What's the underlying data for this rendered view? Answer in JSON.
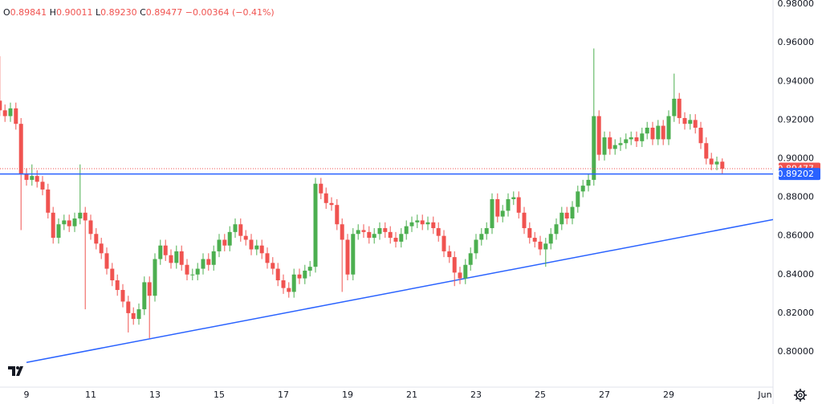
{
  "chart_data": {
    "type": "candlestick",
    "header": {
      "items": [
        {
          "key": "O",
          "value": "0.89841"
        },
        {
          "key": "H",
          "value": "0.90011"
        },
        {
          "key": "L",
          "value": "0.89230"
        },
        {
          "key": "C",
          "value": "0.89477"
        }
      ],
      "change": "−0.00364 (−0.41%)"
    },
    "up_color": "#4caf50",
    "down_color": "#f05350",
    "x": [
      8.17,
      8.33,
      8.5,
      8.67,
      8.83,
      9,
      9.17,
      9.33,
      9.5,
      9.67,
      9.83,
      10,
      10.17,
      10.33,
      10.5,
      10.67,
      10.83,
      11,
      11.17,
      11.33,
      11.5,
      11.67,
      11.83,
      12,
      12.17,
      12.33,
      12.5,
      12.67,
      12.83,
      13,
      13.17,
      13.33,
      13.5,
      13.67,
      13.83,
      14,
      14.17,
      14.33,
      14.5,
      14.67,
      14.83,
      15,
      15.17,
      15.33,
      15.5,
      15.67,
      15.83,
      16,
      16.17,
      16.33,
      16.5,
      16.67,
      16.83,
      17,
      17.17,
      17.33,
      17.5,
      17.67,
      17.83,
      18,
      18.17,
      18.33,
      18.5,
      18.67,
      18.83,
      19,
      19.17,
      19.33,
      19.5,
      19.67,
      19.83,
      20,
      20.17,
      20.33,
      20.5,
      20.67,
      20.83,
      21,
      21.17,
      21.33,
      21.5,
      21.67,
      21.83,
      22,
      22.17,
      22.33,
      22.5,
      22.67,
      22.83,
      23,
      23.17,
      23.33,
      23.5,
      23.67,
      23.83,
      24,
      24.17,
      24.33,
      24.5,
      24.67,
      24.83,
      25,
      25.17,
      25.33,
      25.5,
      25.67,
      25.83,
      26,
      26.17,
      26.33,
      26.5,
      26.67,
      26.83,
      27,
      27.17,
      27.33,
      27.5,
      27.67,
      27.83,
      28,
      28.17,
      28.33,
      28.5,
      28.67,
      28.83,
      29,
      29.17,
      29.33,
      29.5,
      29.67,
      29.83,
      30,
      30.17,
      30.33,
      30.5,
      30.67
    ],
    "open": [
      0.93,
      0.925,
      0.922,
      0.926,
      0.918,
      0.892,
      0.889,
      0.891,
      0.888,
      0.884,
      0.872,
      0.859,
      0.866,
      0.868,
      0.865,
      0.869,
      0.872,
      0.868,
      0.861,
      0.856,
      0.851,
      0.843,
      0.837,
      0.832,
      0.826,
      0.82,
      0.817,
      0.822,
      0.836,
      0.829,
      0.848,
      0.855,
      0.85,
      0.846,
      0.852,
      0.845,
      0.84,
      0.84,
      0.843,
      0.848,
      0.845,
      0.852,
      0.858,
      0.855,
      0.862,
      0.866,
      0.86,
      0.858,
      0.853,
      0.855,
      0.851,
      0.846,
      0.843,
      0.837,
      0.833,
      0.831,
      0.84,
      0.838,
      0.842,
      0.844,
      0.887,
      0.882,
      0.877,
      0.876,
      0.866,
      0.858,
      0.84,
      0.861,
      0.863,
      0.862,
      0.859,
      0.861,
      0.864,
      0.862,
      0.859,
      0.857,
      0.861,
      0.865,
      0.867,
      0.868,
      0.866,
      0.867,
      0.864,
      0.86,
      0.852,
      0.849,
      0.841,
      0.838,
      0.845,
      0.851,
      0.858,
      0.861,
      0.864,
      0.879,
      0.87,
      0.873,
      0.879,
      0.88,
      0.872,
      0.864,
      0.859,
      0.857,
      0.853,
      0.856,
      0.861,
      0.866,
      0.872,
      0.869,
      0.875,
      0.883,
      0.886,
      0.889,
      0.922,
      0.902,
      0.911,
      0.905,
      0.907,
      0.908,
      0.91,
      0.911,
      0.909,
      0.913,
      0.916,
      0.91,
      0.917,
      0.91,
      0.922,
      0.931,
      0.921,
      0.918,
      0.92,
      0.916,
      0.908,
      0.9,
      0.897,
      0.89841
    ],
    "high": [
      0.953,
      0.928,
      0.929,
      0.929,
      0.921,
      0.895,
      0.897,
      0.894,
      0.891,
      0.887,
      0.875,
      0.869,
      0.871,
      0.871,
      0.872,
      0.897,
      0.875,
      0.871,
      0.864,
      0.859,
      0.854,
      0.846,
      0.84,
      0.835,
      0.829,
      0.823,
      0.825,
      0.839,
      0.839,
      0.851,
      0.858,
      0.858,
      0.853,
      0.855,
      0.855,
      0.848,
      0.843,
      0.846,
      0.851,
      0.851,
      0.855,
      0.861,
      0.861,
      0.865,
      0.869,
      0.869,
      0.863,
      0.861,
      0.858,
      0.858,
      0.854,
      0.849,
      0.846,
      0.84,
      0.836,
      0.843,
      0.843,
      0.845,
      0.847,
      0.89,
      0.89,
      0.885,
      0.88,
      0.879,
      0.869,
      0.861,
      0.864,
      0.866,
      0.866,
      0.865,
      0.864,
      0.867,
      0.867,
      0.865,
      0.862,
      0.864,
      0.868,
      0.87,
      0.871,
      0.871,
      0.87,
      0.87,
      0.867,
      0.863,
      0.855,
      0.852,
      0.844,
      0.848,
      0.854,
      0.861,
      0.864,
      0.867,
      0.882,
      0.882,
      0.876,
      0.882,
      0.883,
      0.883,
      0.875,
      0.867,
      0.862,
      0.86,
      0.859,
      0.864,
      0.869,
      0.875,
      0.875,
      0.878,
      0.886,
      0.889,
      0.892,
      0.957,
      0.925,
      0.914,
      0.914,
      0.91,
      0.911,
      0.913,
      0.914,
      0.914,
      0.916,
      0.919,
      0.919,
      0.92,
      0.92,
      0.925,
      0.944,
      0.934,
      0.924,
      0.923,
      0.923,
      0.919,
      0.911,
      0.903,
      0.901,
      0.90011
    ],
    "low": [
      0.922,
      0.919,
      0.919,
      0.915,
      0.863,
      0.886,
      0.886,
      0.885,
      0.881,
      0.869,
      0.856,
      0.856,
      0.863,
      0.862,
      0.862,
      0.866,
      0.822,
      0.858,
      0.853,
      0.848,
      0.84,
      0.834,
      0.829,
      0.823,
      0.81,
      0.814,
      0.814,
      0.819,
      0.807,
      0.826,
      0.845,
      0.847,
      0.843,
      0.843,
      0.842,
      0.837,
      0.837,
      0.837,
      0.84,
      0.842,
      0.842,
      0.849,
      0.852,
      0.852,
      0.859,
      0.857,
      0.855,
      0.85,
      0.85,
      0.848,
      0.843,
      0.84,
      0.834,
      0.83,
      0.828,
      0.828,
      0.835,
      0.835,
      0.839,
      0.841,
      0.879,
      0.874,
      0.873,
      0.863,
      0.831,
      0.837,
      0.837,
      0.858,
      0.859,
      0.856,
      0.856,
      0.858,
      0.859,
      0.856,
      0.854,
      0.854,
      0.858,
      0.862,
      0.864,
      0.863,
      0.863,
      0.861,
      0.857,
      0.849,
      0.846,
      0.834,
      0.835,
      0.835,
      0.842,
      0.848,
      0.855,
      0.858,
      0.861,
      0.867,
      0.867,
      0.87,
      0.876,
      0.869,
      0.861,
      0.856,
      0.854,
      0.85,
      0.844,
      0.853,
      0.858,
      0.863,
      0.866,
      0.866,
      0.872,
      0.88,
      0.883,
      0.886,
      0.899,
      0.899,
      0.902,
      0.902,
      0.904,
      0.905,
      0.907,
      0.906,
      0.906,
      0.91,
      0.907,
      0.907,
      0.907,
      0.907,
      0.919,
      0.918,
      0.915,
      0.915,
      0.913,
      0.905,
      0.897,
      0.894,
      0.894,
      0.8923
    ],
    "close": [
      0.925,
      0.922,
      0.926,
      0.918,
      0.892,
      0.889,
      0.891,
      0.888,
      0.884,
      0.872,
      0.859,
      0.866,
      0.868,
      0.865,
      0.869,
      0.872,
      0.868,
      0.861,
      0.856,
      0.851,
      0.843,
      0.837,
      0.832,
      0.826,
      0.82,
      0.817,
      0.822,
      0.836,
      0.829,
      0.848,
      0.855,
      0.85,
      0.846,
      0.852,
      0.845,
      0.84,
      0.84,
      0.843,
      0.848,
      0.845,
      0.852,
      0.858,
      0.855,
      0.862,
      0.866,
      0.86,
      0.858,
      0.853,
      0.855,
      0.851,
      0.846,
      0.843,
      0.837,
      0.833,
      0.831,
      0.84,
      0.838,
      0.842,
      0.844,
      0.887,
      0.882,
      0.877,
      0.876,
      0.866,
      0.858,
      0.84,
      0.861,
      0.863,
      0.862,
      0.859,
      0.861,
      0.864,
      0.862,
      0.859,
      0.857,
      0.861,
      0.865,
      0.867,
      0.868,
      0.866,
      0.867,
      0.864,
      0.86,
      0.852,
      0.849,
      0.841,
      0.838,
      0.845,
      0.851,
      0.858,
      0.861,
      0.864,
      0.879,
      0.87,
      0.873,
      0.879,
      0.88,
      0.872,
      0.864,
      0.859,
      0.857,
      0.853,
      0.856,
      0.861,
      0.866,
      0.872,
      0.869,
      0.875,
      0.883,
      0.886,
      0.889,
      0.922,
      0.902,
      0.911,
      0.905,
      0.907,
      0.908,
      0.91,
      0.911,
      0.909,
      0.913,
      0.916,
      0.91,
      0.917,
      0.91,
      0.922,
      0.931,
      0.921,
      0.918,
      0.92,
      0.916,
      0.908,
      0.9,
      0.897,
      0.89841,
      0.89477
    ],
    "xlim": [
      8.175,
      32.25
    ],
    "ylim": [
      0.7817,
      0.9821
    ],
    "xticks": [
      9,
      11,
      13,
      15,
      17,
      19,
      21,
      23,
      25,
      27,
      29,
      {
        "value": 32,
        "label": "Jun"
      }
    ],
    "yticks": [
      {
        "value": 0.98,
        "label": "0.98000"
      },
      {
        "value": 0.96,
        "label": "0.96000"
      },
      {
        "value": 0.94,
        "label": "0.94000"
      },
      {
        "value": 0.92,
        "label": "0.92000"
      },
      {
        "value": 0.9,
        "label": "0.90000"
      },
      {
        "value": 0.88,
        "label": "0.88000"
      },
      {
        "value": 0.86,
        "label": "0.86000"
      },
      {
        "value": 0.84,
        "label": "0.84000"
      },
      {
        "value": 0.82,
        "label": "0.82000"
      },
      {
        "value": 0.8,
        "label": "0.80000"
      }
    ],
    "last_price": {
      "value": 0.89477,
      "color": "#f05350"
    },
    "hline": {
      "value": 0.89202,
      "color": "#2962ff"
    },
    "trendline": {
      "x": [
        9,
        32.43
      ],
      "y": [
        0.7945,
        0.869
      ],
      "color": "#2962ff"
    }
  }
}
